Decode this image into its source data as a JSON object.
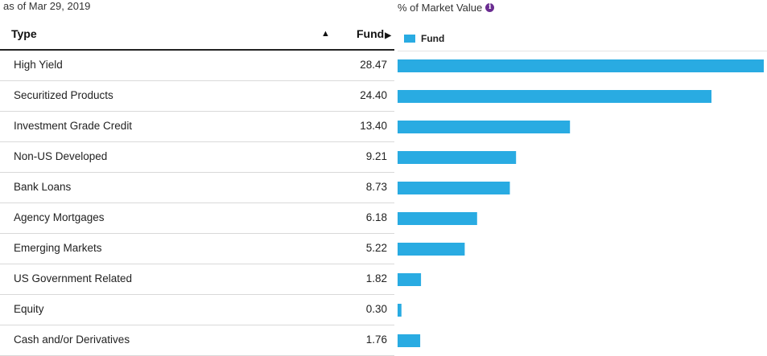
{
  "header": {
    "as_of": "as of Mar 29, 2019",
    "chart_title": "% of Market Value",
    "info_icon": "info-icon",
    "col_type": "Type",
    "col_type_sort_icon": "▲",
    "col_fund": "Fund",
    "col_fund_arrow_icon": "▶"
  },
  "legend": {
    "label": "Fund",
    "color": "#29abe2"
  },
  "chart_data": {
    "type": "bar",
    "orientation": "horizontal",
    "title": "% of Market Value",
    "categories": [
      "High Yield",
      "Securitized Products",
      "Investment Grade Credit",
      "Non-US Developed",
      "Bank Loans",
      "Agency Mortgages",
      "Emerging Markets",
      "US Government Related",
      "Equity",
      "Cash and/or Derivatives"
    ],
    "value_labels": [
      "28.47",
      "24.40",
      "13.40",
      "9.21",
      "8.73",
      "6.18",
      "5.22",
      "1.82",
      "0.30",
      "1.76"
    ],
    "series": [
      {
        "name": "Fund",
        "color": "#29abe2",
        "values": [
          28.47,
          24.4,
          13.4,
          9.21,
          8.73,
          6.18,
          5.22,
          1.82,
          0.3,
          1.76
        ]
      }
    ],
    "xlim": [
      0,
      28.47
    ],
    "grid": false,
    "legend_position": "top-left"
  }
}
